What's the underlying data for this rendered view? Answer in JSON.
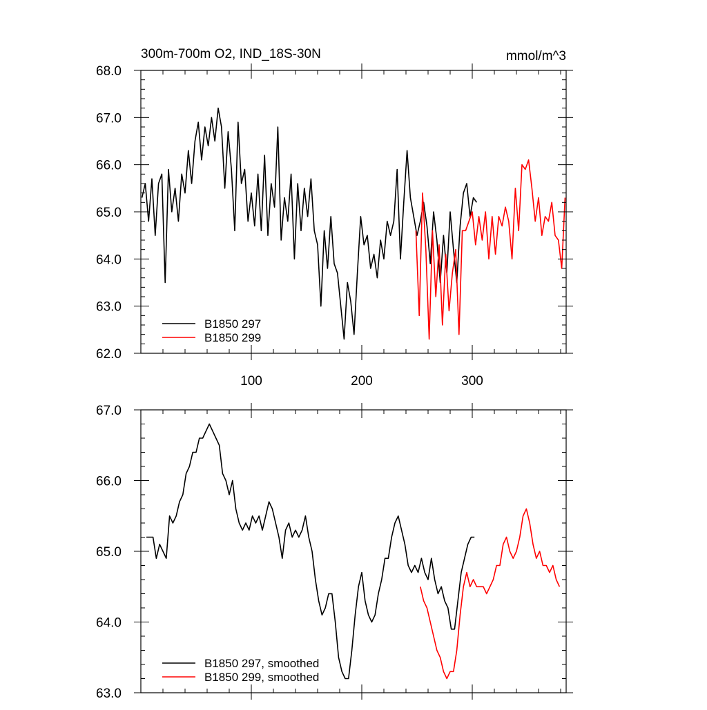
{
  "figure": {
    "title_left": "300m-700m O2, IND_18S-30N",
    "title_right": "mmol/m^3"
  },
  "chart_data": [
    {
      "type": "line",
      "title": "300m-700m O2, IND_18S-30N",
      "units": "mmol/m^3",
      "xlim": [
        0,
        385
      ],
      "ylim": [
        62.0,
        68.0
      ],
      "x_ticks": [
        100,
        200,
        300
      ],
      "x_tick_labels": [
        "100",
        "200",
        "300"
      ],
      "y_ticks": [
        62,
        63,
        64,
        65,
        66,
        67,
        68
      ],
      "y_tick_labels": [
        "62.0",
        "63.0",
        "64.0",
        "65.0",
        "66.0",
        "67.0",
        "68.0"
      ],
      "legend_position": "bottom-left",
      "series": [
        {
          "name": "B1850 297",
          "color": "#000000",
          "x": [
            1,
            4,
            7,
            10,
            13,
            16,
            19,
            22,
            25,
            28,
            31,
            34,
            37,
            40,
            43,
            46,
            49,
            52,
            55,
            58,
            61,
            64,
            67,
            70,
            73,
            76,
            79,
            82,
            85,
            88,
            91,
            94,
            97,
            100,
            103,
            106,
            109,
            112,
            115,
            118,
            121,
            124,
            127,
            130,
            133,
            136,
            139,
            142,
            145,
            148,
            151,
            154,
            157,
            160,
            163,
            166,
            169,
            172,
            175,
            178,
            181,
            184,
            187,
            190,
            193,
            196,
            199,
            202,
            205,
            208,
            211,
            214,
            217,
            220,
            223,
            226,
            229,
            232,
            235,
            238,
            241,
            244,
            247,
            250,
            253,
            256,
            259,
            262,
            265,
            268,
            271,
            274,
            277,
            280,
            283,
            286,
            289,
            292,
            295,
            298,
            301,
            304
          ],
          "y": [
            65.3,
            65.6,
            64.8,
            65.7,
            64.5,
            65.6,
            65.8,
            63.5,
            65.9,
            65.0,
            65.5,
            64.8,
            65.8,
            65.4,
            66.3,
            65.6,
            66.5,
            66.9,
            66.1,
            66.8,
            66.4,
            67.0,
            66.5,
            67.2,
            66.8,
            65.5,
            66.7,
            65.9,
            64.6,
            66.9,
            65.6,
            65.9,
            64.8,
            65.4,
            64.7,
            65.8,
            64.6,
            66.2,
            64.5,
            65.6,
            65.1,
            66.8,
            64.4,
            65.3,
            64.8,
            65.8,
            64.0,
            65.6,
            64.6,
            65.5,
            64.9,
            65.7,
            64.6,
            64.3,
            63.0,
            64.6,
            63.8,
            64.9,
            63.9,
            63.7,
            63.0,
            62.3,
            63.5,
            63.1,
            62.4,
            63.7,
            64.9,
            64.3,
            64.5,
            63.8,
            64.1,
            63.6,
            64.4,
            64.0,
            64.8,
            64.5,
            64.8,
            65.9,
            64.0,
            65.2,
            66.3,
            65.3,
            64.9,
            64.5,
            64.8,
            65.2,
            64.7,
            63.9,
            65.0,
            64.4,
            63.5,
            64.5,
            63.7,
            65.0,
            64.2,
            63.5,
            64.7,
            65.4,
            65.6,
            64.9,
            65.3,
            65.2
          ]
        },
        {
          "name": "B1850 299",
          "color": "#ff0000",
          "x": [
            249,
            252,
            255,
            258,
            261,
            264,
            267,
            270,
            273,
            276,
            279,
            282,
            285,
            288,
            291,
            294,
            297,
            300,
            303,
            306,
            309,
            312,
            315,
            318,
            321,
            324,
            327,
            330,
            333,
            336,
            339,
            342,
            345,
            348,
            351,
            354,
            357,
            360,
            363,
            366,
            369,
            372,
            375,
            378,
            381,
            384
          ],
          "y": [
            64.6,
            62.8,
            65.4,
            64.2,
            62.3,
            64.6,
            63.2,
            64.3,
            62.6,
            64.1,
            62.9,
            63.7,
            64.2,
            62.4,
            64.6,
            64.6,
            64.8,
            65.0,
            64.3,
            64.9,
            64.4,
            65.0,
            64.0,
            64.9,
            64.1,
            64.9,
            64.7,
            65.1,
            64.8,
            64.0,
            65.5,
            64.6,
            66.0,
            65.9,
            66.1,
            65.5,
            64.8,
            65.3,
            64.5,
            64.9,
            64.8,
            65.2,
            64.5,
            64.4,
            63.8,
            65.3
          ]
        }
      ]
    },
    {
      "type": "line",
      "xlim": [
        0,
        385
      ],
      "ylim": [
        63.0,
        67.0
      ],
      "x_ticks": [
        100,
        200,
        300
      ],
      "x_tick_labels": [],
      "y_ticks": [
        63,
        64,
        65,
        66,
        67
      ],
      "y_tick_labels": [
        "63.0",
        "64.0",
        "65.0",
        "66.0",
        "67.0"
      ],
      "legend_position": "bottom-left",
      "series": [
        {
          "name": "B1850 297, smoothed",
          "color": "#000000",
          "x": [
            5,
            8,
            11,
            14,
            17,
            20,
            23,
            26,
            29,
            32,
            35,
            38,
            41,
            44,
            47,
            50,
            53,
            56,
            59,
            62,
            65,
            68,
            71,
            74,
            77,
            80,
            83,
            86,
            89,
            92,
            95,
            98,
            101,
            104,
            107,
            110,
            113,
            116,
            119,
            122,
            125,
            128,
            131,
            134,
            137,
            140,
            143,
            146,
            149,
            152,
            155,
            158,
            161,
            164,
            167,
            170,
            173,
            176,
            179,
            182,
            185,
            188,
            191,
            194,
            197,
            200,
            203,
            206,
            209,
            212,
            215,
            218,
            221,
            224,
            227,
            230,
            233,
            236,
            239,
            242,
            245,
            248,
            251,
            254,
            257,
            260,
            263,
            266,
            269,
            272,
            275,
            278,
            281,
            284,
            287,
            290,
            293,
            296,
            299,
            302
          ],
          "y": [
            65.2,
            65.2,
            65.2,
            64.9,
            65.1,
            65.0,
            64.9,
            65.5,
            65.4,
            65.5,
            65.7,
            65.8,
            66.1,
            66.2,
            66.4,
            66.4,
            66.6,
            66.6,
            66.7,
            66.8,
            66.7,
            66.6,
            66.5,
            66.1,
            66.0,
            65.8,
            66.0,
            65.6,
            65.4,
            65.3,
            65.4,
            65.3,
            65.5,
            65.4,
            65.5,
            65.3,
            65.5,
            65.7,
            65.6,
            65.4,
            65.2,
            64.9,
            65.3,
            65.4,
            65.2,
            65.3,
            65.2,
            65.3,
            65.5,
            65.2,
            65.0,
            64.6,
            64.3,
            64.1,
            64.2,
            64.4,
            64.4,
            64.0,
            63.5,
            63.3,
            63.2,
            63.2,
            63.6,
            64.1,
            64.5,
            64.7,
            64.3,
            64.1,
            64.0,
            64.1,
            64.4,
            64.6,
            64.9,
            64.9,
            65.2,
            65.4,
            65.5,
            65.3,
            65.1,
            64.8,
            64.7,
            64.8,
            64.7,
            64.9,
            64.7,
            64.6,
            64.9,
            64.6,
            64.4,
            64.5,
            64.3,
            64.2,
            63.9,
            63.9,
            64.3,
            64.7,
            64.9,
            65.1,
            65.2,
            65.2
          ]
        },
        {
          "name": "B1850 299, smoothed",
          "color": "#ff0000",
          "x": [
            253,
            256,
            259,
            262,
            265,
            268,
            271,
            274,
            277,
            280,
            283,
            286,
            289,
            292,
            295,
            298,
            301,
            304,
            307,
            310,
            313,
            316,
            319,
            322,
            325,
            328,
            331,
            334,
            337,
            340,
            343,
            346,
            349,
            352,
            355,
            358,
            361,
            364,
            367,
            370,
            373,
            376,
            379
          ],
          "y": [
            64.5,
            64.3,
            64.2,
            64.0,
            63.8,
            63.6,
            63.5,
            63.3,
            63.2,
            63.3,
            63.3,
            63.6,
            64.1,
            64.5,
            64.7,
            64.5,
            64.6,
            64.5,
            64.5,
            64.5,
            64.4,
            64.5,
            64.6,
            64.8,
            64.8,
            65.1,
            65.2,
            65.0,
            64.9,
            65.0,
            65.2,
            65.5,
            65.6,
            65.4,
            65.1,
            64.9,
            65.0,
            64.8,
            64.8,
            64.7,
            64.8,
            64.6,
            64.5
          ]
        }
      ]
    }
  ]
}
